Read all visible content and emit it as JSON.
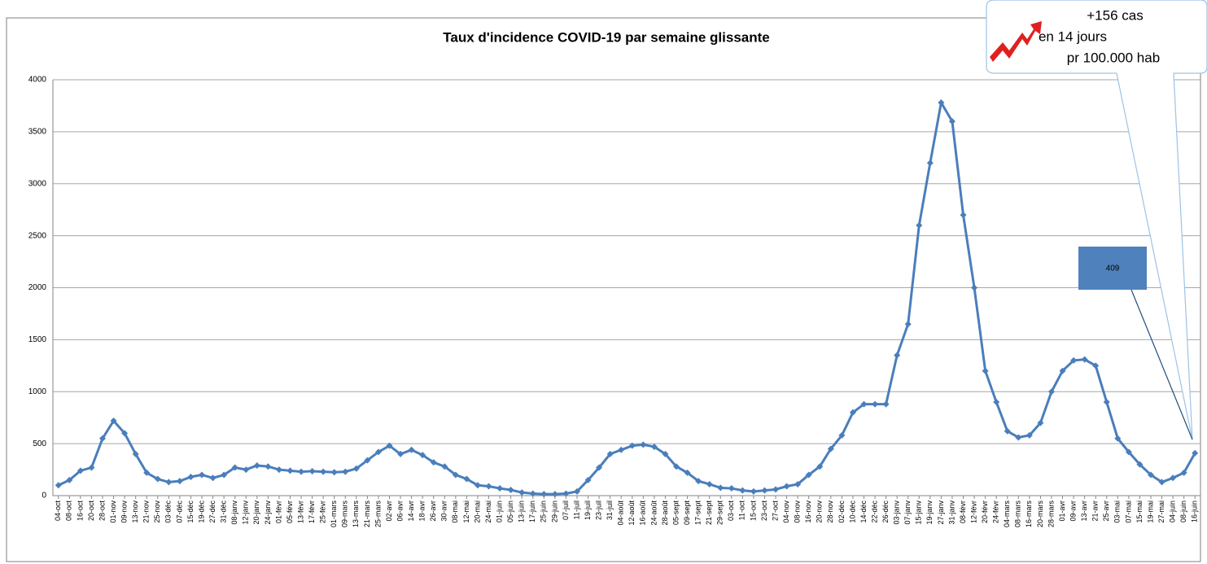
{
  "chart_data": {
    "type": "line",
    "title": "Taux d'incidence COVID-19 par semaine glissante",
    "categories": [
      "04-oct",
      "08-oct",
      "16-oct",
      "20-oct",
      "28-oct",
      "01-nov",
      "09-nov",
      "13-nov",
      "21-nov",
      "25-nov",
      "03-déc",
      "07-déc",
      "15-déc",
      "19-déc",
      "27-déc",
      "31-déc",
      "08-janv",
      "12-janv",
      "20-janv",
      "24-janv",
      "01-févr",
      "05-févr",
      "13-févr",
      "17-févr",
      "25-févr",
      "01-mars",
      "09-mars",
      "13-mars",
      "21-mars",
      "25-mars",
      "02-avr",
      "06-avr",
      "14-avr",
      "18-avr",
      "26-avr",
      "30-avr",
      "08-mai",
      "12-mai",
      "20-mai",
      "24-mai",
      "01-juin",
      "05-juin",
      "13-juin",
      "17-juin",
      "25-juin",
      "29-juin",
      "07-juil",
      "11-juil",
      "19-juil",
      "23-juil",
      "31-juil",
      "04-août",
      "12-août",
      "16-août",
      "24-août",
      "28-août",
      "05-sept",
      "09-sept",
      "17-sept",
      "21-sept",
      "29-sept",
      "03-oct",
      "11-oct",
      "15-oct",
      "23-oct",
      "27-oct",
      "04-nov",
      "08-nov",
      "16-nov",
      "20-nov",
      "28-nov",
      "02-déc",
      "10-déc",
      "14-déc",
      "22-déc",
      "26-déc",
      "03-janv",
      "07-janv",
      "15-janv",
      "19-janv",
      "27-janv",
      "31-janv",
      "08-févr",
      "12-févr",
      "20-févr",
      "24-févr",
      "04-mars",
      "08-mars",
      "16-mars",
      "20-mars",
      "28-mars",
      "01-avr",
      "09-avr",
      "13-avr",
      "21-avr",
      "25-avr",
      "03-mai",
      "07-mai",
      "15-mai",
      "19-mai",
      "27-mai",
      "04-juin",
      "08-juin",
      "16-juin"
    ],
    "series": [
      {
        "color": "#4a7ebb",
        "values": [
          100,
          150,
          240,
          270,
          550,
          720,
          600,
          400,
          220,
          160,
          130,
          140,
          180,
          200,
          170,
          200,
          270,
          250,
          290,
          280,
          250,
          240,
          230,
          235,
          230,
          225,
          230,
          260,
          340,
          420,
          480,
          400,
          440,
          390,
          320,
          280,
          200,
          160,
          100,
          90,
          70,
          55,
          30,
          20,
          15,
          15,
          20,
          40,
          150,
          270,
          400,
          440,
          480,
          490,
          470,
          400,
          280,
          220,
          140,
          110,
          75,
          70,
          50,
          40,
          50,
          60,
          90,
          110,
          200,
          280,
          450,
          580,
          800,
          880,
          880,
          880,
          1350,
          1650,
          2600,
          3200,
          3780,
          3600,
          2700,
          2000,
          1200,
          900,
          620,
          560,
          580,
          700,
          1000,
          1200,
          1300,
          1310,
          1250,
          900,
          550,
          420,
          300,
          200,
          130,
          170,
          220,
          409
        ]
      }
    ],
    "ylim": [
      0,
      4000
    ],
    "yticks": [
      0,
      500,
      1000,
      1500,
      2000,
      2500,
      3000,
      3500,
      4000
    ],
    "grid": true,
    "annotation": [
      "+156 cas",
      "en 14  jours",
      "pr 100.000 hab"
    ]
  }
}
